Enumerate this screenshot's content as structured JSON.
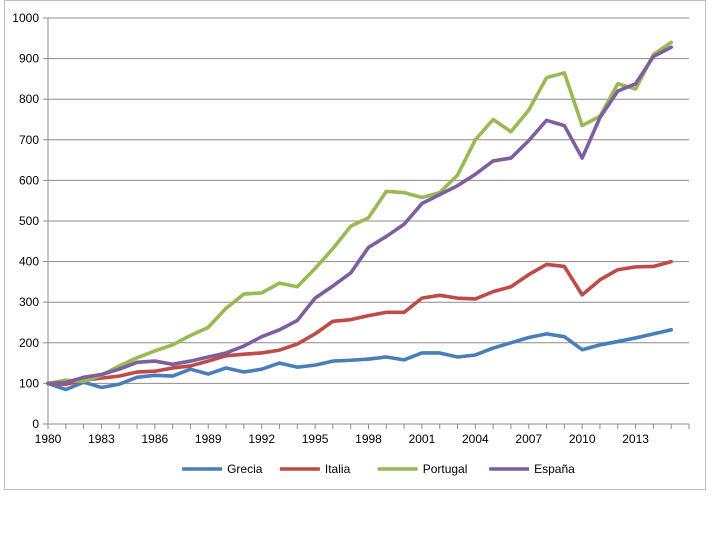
{
  "chart_data": {
    "type": "line",
    "title": "",
    "xlabel": "",
    "ylabel": "",
    "ylim": [
      0,
      1000
    ],
    "y_ticks": [
      0,
      100,
      200,
      300,
      400,
      500,
      600,
      700,
      800,
      900,
      1000
    ],
    "y_tick_labels": [
      "0",
      "100",
      "200",
      "300",
      "400",
      "500",
      "600",
      "700",
      "800",
      "900",
      "1000"
    ],
    "x_ticks": [
      1980,
      1983,
      1986,
      1989,
      1992,
      1995,
      1998,
      2001,
      2004,
      2007,
      2010,
      2013
    ],
    "x_tick_labels": [
      "1980",
      "1983",
      "1986",
      "1989",
      "1992",
      "1995",
      "1998",
      "2001",
      "2004",
      "2007",
      "2010",
      "2013"
    ],
    "x": [
      1980,
      1981,
      1982,
      1983,
      1984,
      1985,
      1986,
      1987,
      1988,
      1989,
      1990,
      1991,
      1992,
      1993,
      1994,
      1995,
      1996,
      1997,
      1998,
      1999,
      2000,
      2001,
      2002,
      2003,
      2004,
      2005,
      2006,
      2007,
      2008,
      2009,
      2010,
      2011,
      2012,
      2013,
      2014,
      2015
    ],
    "grid": true,
    "legend_position": "bottom",
    "series": [
      {
        "name": "Grecia",
        "color": "#4a7ebb",
        "values": [
          100,
          85,
          103,
          90,
          98,
          115,
          120,
          118,
          135,
          123,
          138,
          128,
          135,
          150,
          140,
          145,
          155,
          157,
          160,
          165,
          158,
          175,
          175,
          165,
          170,
          187,
          200,
          213,
          222,
          215,
          183,
          195,
          203,
          212,
          222,
          232
        ]
      },
      {
        "name": "Italia",
        "color": "#be4b48",
        "values": [
          100,
          98,
          108,
          113,
          118,
          128,
          130,
          138,
          143,
          155,
          168,
          172,
          175,
          182,
          197,
          222,
          253,
          257,
          267,
          275,
          275,
          310,
          317,
          310,
          308,
          326,
          338,
          368,
          393,
          388,
          318,
          355,
          380,
          387,
          388,
          400
        ]
      },
      {
        "name": "Portugal",
        "color": "#98b954",
        "values": [
          100,
          108,
          105,
          120,
          143,
          163,
          180,
          195,
          218,
          238,
          285,
          320,
          323,
          347,
          338,
          383,
          432,
          487,
          508,
          573,
          570,
          558,
          570,
          613,
          700,
          750,
          720,
          773,
          853,
          865,
          735,
          758,
          838,
          825,
          910,
          940
        ]
      },
      {
        "name": "España",
        "color": "#7d5fa0",
        "values": [
          100,
          102,
          115,
          122,
          135,
          152,
          155,
          147,
          155,
          165,
          175,
          192,
          215,
          232,
          255,
          310,
          340,
          372,
          435,
          462,
          492,
          543,
          565,
          587,
          615,
          648,
          655,
          698,
          748,
          735,
          655,
          755,
          820,
          838,
          905,
          928
        ]
      }
    ]
  }
}
